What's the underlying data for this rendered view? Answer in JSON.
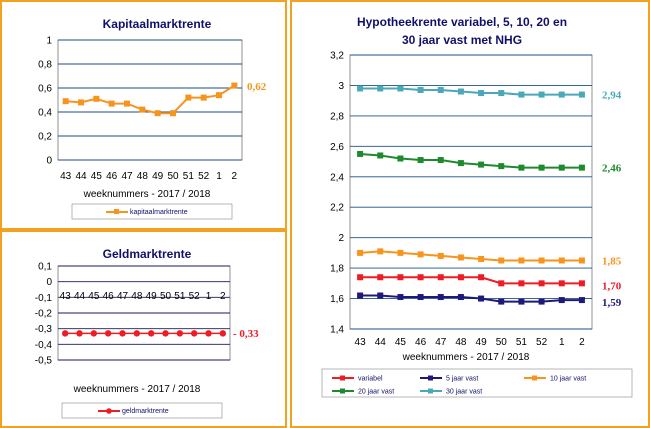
{
  "panels": {
    "kapitaal": {
      "title": "Kapitaalmarktrente",
      "xlabel": "weeknummers - 2017 / 2018",
      "end_label": "0,62"
    },
    "geld": {
      "title": "Geldmarktrente",
      "xlabel": "weeknummers - 2017 / 2018",
      "end_label": "- 0,33"
    },
    "hypotheek": {
      "title_line1": "Hypotheekrente variabel, 5, 10, 20 en",
      "title_line2": "30 jaar vast met NHG",
      "xlabel": "weeknummers - 2017 / 2018",
      "end_labels": [
        "2,94",
        "2,46",
        "1,85",
        "1,70",
        "1,59"
      ]
    }
  },
  "chart_data": [
    {
      "type": "line",
      "title": "Kapitaalmarktrente",
      "xlabel": "weeknummers - 2017 / 2018",
      "ylabel": "",
      "categories": [
        "43",
        "44",
        "45",
        "46",
        "47",
        "48",
        "49",
        "50",
        "51",
        "52",
        "1",
        "2"
      ],
      "y_ticks": [
        "0",
        "0,2",
        "0,4",
        "0,6",
        "0,8",
        "1"
      ],
      "ylim": [
        0,
        1
      ],
      "grid": true,
      "legend": "bottom",
      "series": [
        {
          "name": "kapitaalmarktrente",
          "color": "#f7941d",
          "values": [
            0.49,
            0.48,
            0.51,
            0.47,
            0.47,
            0.42,
            0.39,
            0.39,
            0.52,
            0.52,
            0.54,
            0.62
          ]
        }
      ]
    },
    {
      "type": "line",
      "title": "Geldmarktrente",
      "xlabel": "weeknummers - 2017 / 2018",
      "ylabel": "",
      "categories": [
        "43",
        "44",
        "45",
        "46",
        "47",
        "48",
        "49",
        "50",
        "51",
        "52",
        "1",
        "2"
      ],
      "y_ticks": [
        "0,1",
        "0",
        "-0,1",
        "-0,2",
        "-0,3",
        "-0,4",
        "-0,5"
      ],
      "ylim": [
        -0.5,
        0.1
      ],
      "grid": true,
      "legend": "bottom",
      "series": [
        {
          "name": "geldmarktrente",
          "color": "#ee1c25",
          "values": [
            -0.33,
            -0.33,
            -0.33,
            -0.33,
            -0.33,
            -0.33,
            -0.33,
            -0.33,
            -0.33,
            -0.33,
            -0.33,
            -0.33
          ]
        }
      ]
    },
    {
      "type": "line",
      "title": "Hypotheekrente variabel, 5, 10, 20 en 30 jaar vast met NHG",
      "xlabel": "weeknummers - 2017 / 2018",
      "ylabel": "",
      "categories": [
        "43",
        "44",
        "45",
        "46",
        "47",
        "48",
        "49",
        "50",
        "51",
        "52",
        "1",
        "2"
      ],
      "y_ticks": [
        "1,4",
        "1,6",
        "1,8",
        "2",
        "2,2",
        "2,4",
        "2,6",
        "2,8",
        "3",
        "3,2"
      ],
      "ylim": [
        1.4,
        3.2
      ],
      "grid": true,
      "legend": "bottom",
      "series": [
        {
          "name": "variabel",
          "color": "#ee1c25",
          "values": [
            1.74,
            1.74,
            1.74,
            1.74,
            1.74,
            1.74,
            1.74,
            1.7,
            1.7,
            1.7,
            1.7,
            1.7
          ]
        },
        {
          "name": "5 jaar vast",
          "color": "#1f1a7a",
          "values": [
            1.62,
            1.62,
            1.61,
            1.61,
            1.61,
            1.61,
            1.6,
            1.58,
            1.58,
            1.58,
            1.59,
            1.59
          ]
        },
        {
          "name": "10 jaar vast",
          "color": "#f7941d",
          "values": [
            1.9,
            1.91,
            1.9,
            1.89,
            1.88,
            1.87,
            1.86,
            1.85,
            1.85,
            1.85,
            1.85,
            1.85
          ]
        },
        {
          "name": "20 jaar vast",
          "color": "#1e8a2e",
          "values": [
            2.55,
            2.54,
            2.52,
            2.51,
            2.51,
            2.49,
            2.48,
            2.47,
            2.46,
            2.46,
            2.46,
            2.46
          ]
        },
        {
          "name": "30 jaar vast",
          "color": "#4aa8b8",
          "values": [
            2.98,
            2.98,
            2.98,
            2.97,
            2.97,
            2.96,
            2.95,
            2.95,
            2.94,
            2.94,
            2.94,
            2.94
          ]
        }
      ]
    }
  ]
}
